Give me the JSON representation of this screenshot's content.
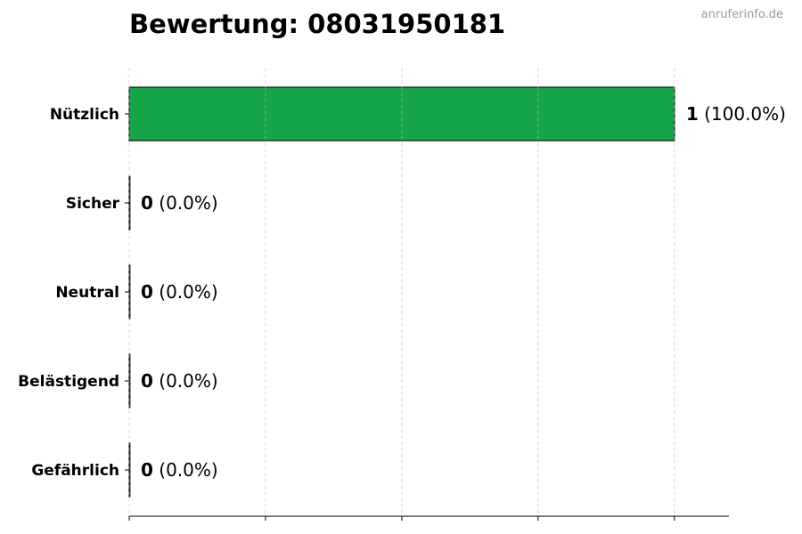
{
  "chart_data": {
    "type": "bar",
    "orientation": "horizontal",
    "title": "Bewertung: 08031950181",
    "watermark": "anruferinfo.de",
    "categories": [
      "Nützlich",
      "Sicher",
      "Neutral",
      "Belästigend",
      "Gefährlich"
    ],
    "values": [
      1,
      0,
      0,
      0,
      0
    ],
    "value_labels": [
      "1",
      "0",
      "0",
      "0",
      "0"
    ],
    "percent_labels": [
      "(100.0%)",
      "(0.0%)",
      "(0.0%)",
      "(0.0%)",
      "(0.0%)"
    ],
    "colors": [
      "#17a54a",
      "#4ade80",
      "#9ca3af",
      "#f59e0b",
      "#dc2626"
    ],
    "xlim": [
      0,
      1.1
    ],
    "xticks": [
      0,
      0.25,
      0.5,
      0.75,
      1
    ],
    "xlabel": "",
    "ylabel": "",
    "grid": "vertical dashed"
  }
}
